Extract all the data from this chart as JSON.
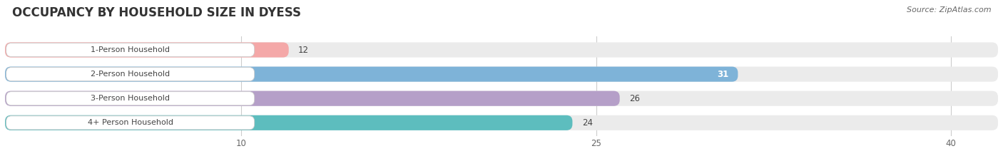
{
  "title": "OCCUPANCY BY HOUSEHOLD SIZE IN DYESS",
  "source": "Source: ZipAtlas.com",
  "categories": [
    "1-Person Household",
    "2-Person Household",
    "3-Person Household",
    "4+ Person Household"
  ],
  "values": [
    12,
    31,
    26,
    24
  ],
  "bar_colors": [
    "#f4a8a8",
    "#7eb3d8",
    "#b59fc8",
    "#5dbdbe"
  ],
  "value_label_colors": [
    "#555555",
    "#ffffff",
    "#555555",
    "#555555"
  ],
  "xlim": [
    0,
    42
  ],
  "xticks": [
    10,
    25,
    40
  ],
  "background_color": "#ffffff",
  "bar_background_color": "#ebebeb",
  "title_fontsize": 12,
  "source_fontsize": 8,
  "bar_label_fontsize": 8.5,
  "category_fontsize": 8,
  "tick_fontsize": 8.5,
  "bar_height": 0.62,
  "figsize": [
    14.06,
    2.33
  ],
  "dpi": 100
}
